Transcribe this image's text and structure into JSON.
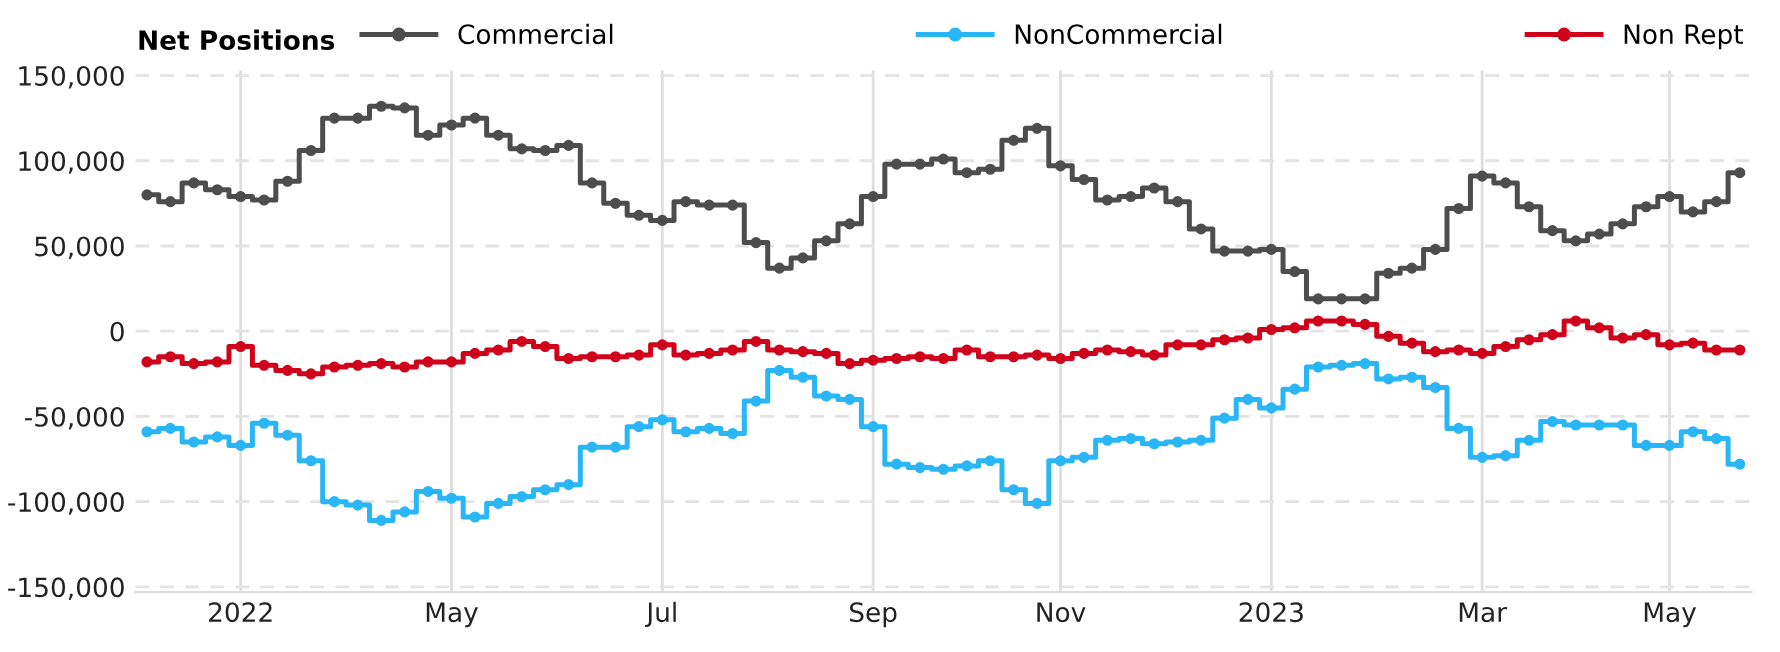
{
  "chart_data": {
    "type": "step",
    "legend_title": "Net Positions",
    "categories": [
      null,
      null,
      null,
      null,
      "2022",
      null,
      null,
      null,
      null,
      null,
      null,
      null,
      null,
      "May",
      null,
      null,
      null,
      null,
      null,
      null,
      null,
      null,
      "Jul",
      null,
      null,
      null,
      null,
      null,
      null,
      null,
      null,
      "Sep",
      null,
      null,
      null,
      null,
      null,
      null,
      null,
      "Nov",
      null,
      null,
      null,
      null,
      null,
      null,
      null,
      null,
      "2023",
      null,
      null,
      null,
      null,
      null,
      null,
      null,
      null,
      "Mar",
      null,
      null,
      null,
      null,
      null,
      null,
      null,
      "May",
      null,
      null,
      null
    ],
    "series": [
      {
        "name": "Commercial",
        "color": "#4d4d4d",
        "values": [
          80000,
          76000,
          87000,
          83000,
          79000,
          77000,
          88000,
          106000,
          125000,
          125000,
          132000,
          131000,
          115000,
          121000,
          125000,
          115000,
          107000,
          106000,
          109000,
          87000,
          75000,
          68000,
          65000,
          76000,
          74000,
          74000,
          52000,
          37000,
          43000,
          53000,
          63000,
          79000,
          98000,
          98000,
          101000,
          93000,
          95000,
          112000,
          119000,
          97000,
          89000,
          77000,
          79000,
          84000,
          76000,
          60000,
          47000,
          47000,
          48000,
          35000,
          19000,
          19000,
          19000,
          34000,
          37000,
          48000,
          72000,
          91000,
          87000,
          73000,
          59000,
          53000,
          57000,
          63000,
          73000,
          79000,
          70000,
          76000,
          93000
        ]
      },
      {
        "name": "NonCommercial",
        "color": "#29b6f6",
        "values": [
          -59000,
          -57000,
          -65000,
          -62000,
          -67000,
          -54000,
          -61000,
          -76000,
          -100000,
          -102000,
          -111000,
          -106000,
          -94000,
          -98000,
          -109000,
          -101000,
          -97000,
          -93000,
          -90000,
          -68000,
          -68000,
          -56000,
          -52000,
          -59000,
          -57000,
          -60000,
          -41000,
          -23000,
          -27000,
          -38000,
          -40000,
          -56000,
          -78000,
          -80000,
          -81000,
          -79000,
          -76000,
          -93000,
          -101000,
          -76000,
          -74000,
          -64000,
          -63000,
          -66000,
          -65000,
          -64000,
          -51000,
          -40000,
          -45000,
          -34000,
          -21000,
          -20000,
          -19000,
          -28000,
          -27000,
          -33000,
          -57000,
          -74000,
          -73000,
          -64000,
          -53000,
          -55000,
          -55000,
          -55000,
          -67000,
          -67000,
          -59000,
          -63000,
          -78000
        ]
      },
      {
        "name": "Non Rept",
        "color": "#d0021b",
        "values": [
          -18000,
          -15000,
          -19000,
          -18000,
          -9000,
          -20000,
          -23000,
          -25000,
          -21000,
          -20000,
          -19000,
          -21000,
          -18000,
          -18000,
          -13000,
          -11000,
          -6000,
          -9000,
          -16000,
          -15000,
          -15000,
          -14000,
          -8000,
          -14000,
          -13000,
          -11000,
          -6000,
          -11000,
          -12000,
          -13000,
          -19000,
          -17000,
          -16000,
          -15000,
          -16000,
          -11000,
          -15000,
          -15000,
          -14000,
          -16000,
          -13000,
          -11000,
          -12000,
          -14000,
          -8000,
          -8000,
          -5000,
          -4000,
          1000,
          2000,
          6000,
          6000,
          4000,
          -3000,
          -7000,
          -12000,
          -11000,
          -13000,
          -9000,
          -5000,
          -2000,
          6000,
          2000,
          -4000,
          -2000,
          -8000,
          -7000,
          -11000,
          -11000
        ]
      }
    ],
    "ylim": [
      -153000,
      153000
    ],
    "yticks": [
      {
        "value": -150000,
        "label": "-150,000"
      },
      {
        "value": -100000,
        "label": "-100,000"
      },
      {
        "value": -50000,
        "label": "-50,000"
      },
      0,
      {
        "value": 50000,
        "label": "50,000"
      },
      {
        "value": 100000,
        "label": "100,000"
      },
      {
        "value": 150000,
        "label": "150,000"
      }
    ],
    "grid": true,
    "legend": "top",
    "marker": "circle",
    "line_style": "solid"
  }
}
